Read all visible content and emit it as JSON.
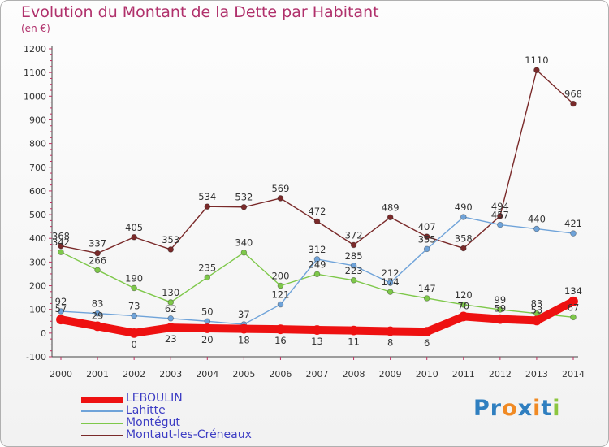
{
  "chart_data": {
    "type": "line",
    "title": "Evolution du Montant de la Dette par Habitant",
    "subtitle": "(en €)",
    "xlabel": "",
    "ylabel": "",
    "categories": [
      "2000",
      "2001",
      "2002",
      "2003",
      "2004",
      "2005",
      "2006",
      "2007",
      "2008",
      "2009",
      "2010",
      "2011",
      "2012",
      "2013",
      "2014"
    ],
    "ylim": [
      -100,
      1200
    ],
    "yticks": [
      "-100",
      "0",
      "100",
      "200",
      "300",
      "400",
      "500",
      "600",
      "700",
      "800",
      "900",
      "1000",
      "1100",
      "1200"
    ],
    "grid": false,
    "legend_position": "bottom-left",
    "series": [
      {
        "name": "LEBOULIN",
        "color": "#ee1111",
        "values": [
          57,
          29,
          0,
          23,
          20,
          18,
          16,
          13,
          11,
          8,
          6,
          70,
          59,
          53,
          134
        ]
      },
      {
        "name": "Lahitte",
        "color": "#6fa3d9",
        "values": [
          92,
          83,
          73,
          62,
          50,
          37,
          121,
          312,
          285,
          212,
          355,
          490,
          457,
          440,
          421
        ]
      },
      {
        "name": "Montégut",
        "color": "#7ec84a",
        "values": [
          342,
          266,
          190,
          130,
          235,
          340,
          200,
          249,
          223,
          174,
          147,
          120,
          99,
          83,
          67
        ]
      },
      {
        "name": "Montaut-les-Créneaux",
        "color": "#7a2a2a",
        "values": [
          368,
          337,
          405,
          353,
          534,
          532,
          569,
          472,
          372,
          489,
          407,
          358,
          494,
          1110,
          968
        ]
      }
    ],
    "data_labels": [
      {
        "series": 0,
        "labels": [
          "57",
          "29",
          "0",
          "23",
          "20",
          "18",
          "16",
          "13",
          "11",
          "8",
          "6",
          "70",
          "59",
          "53",
          "134"
        ]
      },
      {
        "series": 1,
        "labels": [
          "92",
          "83",
          "73",
          "62",
          "50",
          "37",
          "121",
          "312",
          "285",
          "212",
          "355",
          "490",
          "457",
          "440",
          "421"
        ]
      },
      {
        "series": 2,
        "labels": [
          "342",
          "266",
          "190",
          "130",
          "235",
          "340",
          "200",
          "249",
          "223",
          "174",
          "147",
          "120",
          "99",
          "83",
          "67"
        ]
      },
      {
        "series": 3,
        "labels": [
          "368",
          "337",
          "405",
          "353",
          "534",
          "532",
          "569",
          "472",
          "372",
          "489",
          "407",
          "358",
          "494",
          "1110",
          "968"
        ]
      }
    ]
  },
  "legend": {
    "items": [
      "LEBOULIN",
      "Lahitte",
      "Montégut",
      "Montaut-les-Créneaux"
    ]
  },
  "logo": {
    "text": "Proxiti",
    "letters": [
      "P",
      "r",
      "o",
      "x",
      "i",
      "t",
      "i"
    ],
    "colors": [
      "#2f7fc0",
      "#2f7fc0",
      "#f08a24",
      "#2f7fc0",
      "#f08a24",
      "#2f7fc0",
      "#8cc63f"
    ]
  }
}
